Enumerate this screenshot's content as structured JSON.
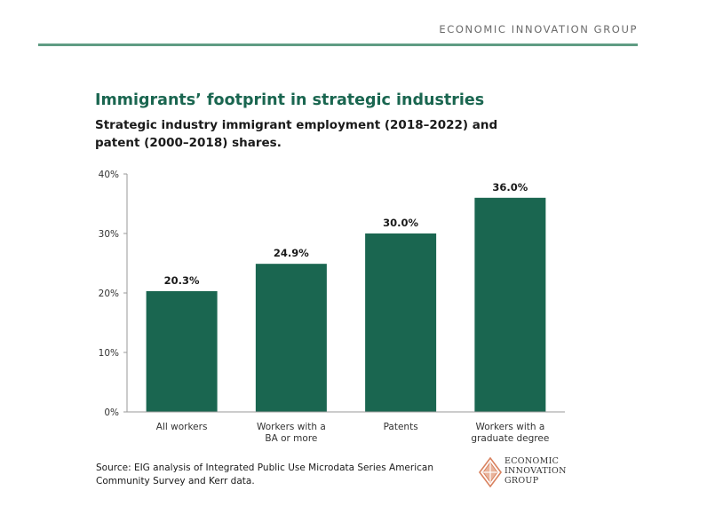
{
  "header": {
    "org_name": "ECONOMIC INNOVATION GROUP"
  },
  "colors": {
    "bar": "#1a6650",
    "accent": "#5f9c83",
    "title": "#1a6650",
    "logo": "#d9825f"
  },
  "chart_data": {
    "type": "bar",
    "title": "Immigrants’ footprint in strategic industries",
    "subtitle": "Strategic industry immigrant employment (2018–2022) and patent (2000–2018) shares.",
    "categories": [
      [
        "All workers"
      ],
      [
        "Workers with a",
        "BA or more"
      ],
      [
        "Patents"
      ],
      [
        "Workers with a",
        "graduate degree"
      ]
    ],
    "values": [
      20.3,
      24.9,
      30.0,
      36.0
    ],
    "value_labels": [
      "20.3%",
      "24.9%",
      "30.0%",
      "36.0%"
    ],
    "ylim": [
      0,
      40
    ],
    "yticks": [
      0,
      10,
      20,
      30,
      40
    ],
    "ytick_labels": [
      "0%",
      "10%",
      "20%",
      "30%",
      "40%"
    ],
    "xlabel": "",
    "ylabel": ""
  },
  "source": {
    "lines": [
      "Source: EIG analysis of Integrated Public Use Microdata Series American",
      "Community Survey and Kerr data."
    ]
  },
  "logo": {
    "lines": [
      "ECONOMIC",
      "INNOVATION",
      "GROUP"
    ],
    "icon": "diamond-logo-icon"
  }
}
